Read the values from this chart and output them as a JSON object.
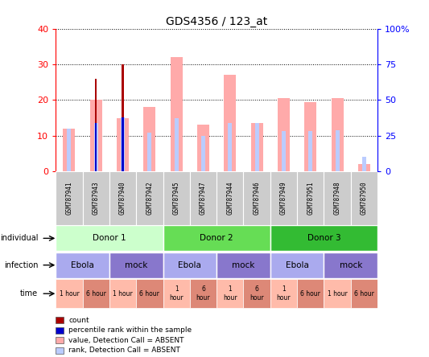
{
  "title": "GDS4356 / 123_at",
  "samples": [
    "GSM787941",
    "GSM787943",
    "GSM787940",
    "GSM787942",
    "GSM787945",
    "GSM787947",
    "GSM787944",
    "GSM787946",
    "GSM787949",
    "GSM787951",
    "GSM787948",
    "GSM787950"
  ],
  "value_absent": [
    12,
    20,
    15,
    18,
    32,
    13,
    27,
    13.5,
    20.5,
    19.5,
    20.5,
    2
  ],
  "rank_absent_pct": [
    30,
    34,
    38,
    27,
    37,
    25,
    34,
    34,
    28,
    28,
    29,
    10
  ],
  "count_vals": [
    0,
    26,
    30,
    0,
    0,
    0,
    0,
    0,
    0,
    0,
    0,
    0
  ],
  "percentile_vals_pct": [
    0,
    34,
    38,
    0,
    0,
    0,
    0,
    0,
    0,
    0,
    0,
    0
  ],
  "ylim_left": [
    0,
    40
  ],
  "ylim_right": [
    0,
    100
  ],
  "yticks_left": [
    0,
    10,
    20,
    30,
    40
  ],
  "yticks_right": [
    0,
    25,
    50,
    75,
    100
  ],
  "ytick_labels_right": [
    "0",
    "25",
    "50",
    "75",
    "100%"
  ],
  "value_absent_color": "#ffaaaa",
  "rank_absent_color": "#bbccff",
  "count_color": "#aa0000",
  "percentile_color": "#0000cc",
  "individual_row": [
    {
      "label": "Donor 1",
      "start": 0,
      "end": 4,
      "color": "#ccffcc"
    },
    {
      "label": "Donor 2",
      "start": 4,
      "end": 8,
      "color": "#66dd55"
    },
    {
      "label": "Donor 3",
      "start": 8,
      "end": 12,
      "color": "#33bb33"
    }
  ],
  "infection_row": [
    {
      "label": "Ebola",
      "start": 0,
      "end": 2,
      "color": "#aaaaee"
    },
    {
      "label": "mock",
      "start": 2,
      "end": 4,
      "color": "#8877cc"
    },
    {
      "label": "Ebola",
      "start": 4,
      "end": 6,
      "color": "#aaaaee"
    },
    {
      "label": "mock",
      "start": 6,
      "end": 8,
      "color": "#8877cc"
    },
    {
      "label": "Ebola",
      "start": 8,
      "end": 10,
      "color": "#aaaaee"
    },
    {
      "label": "mock",
      "start": 10,
      "end": 12,
      "color": "#8877cc"
    }
  ],
  "time_row": [
    {
      "label": "1 hour",
      "start": 0,
      "end": 1,
      "color": "#ffbbaa"
    },
    {
      "label": "6 hour",
      "start": 1,
      "end": 2,
      "color": "#dd8877"
    },
    {
      "label": "1 hour",
      "start": 2,
      "end": 3,
      "color": "#ffbbaa"
    },
    {
      "label": "6 hour",
      "start": 3,
      "end": 4,
      "color": "#dd8877"
    },
    {
      "label": "1\nhour",
      "start": 4,
      "end": 5,
      "color": "#ffbbaa"
    },
    {
      "label": "6\nhour",
      "start": 5,
      "end": 6,
      "color": "#dd8877"
    },
    {
      "label": "1\nhour",
      "start": 6,
      "end": 7,
      "color": "#ffbbaa"
    },
    {
      "label": "6\nhour",
      "start": 7,
      "end": 8,
      "color": "#dd8877"
    },
    {
      "label": "1\nhour",
      "start": 8,
      "end": 9,
      "color": "#ffbbaa"
    },
    {
      "label": "6 hour",
      "start": 9,
      "end": 10,
      "color": "#dd8877"
    },
    {
      "label": "1 hour",
      "start": 10,
      "end": 11,
      "color": "#ffbbaa"
    },
    {
      "label": "6 hour",
      "start": 11,
      "end": 12,
      "color": "#dd8877"
    }
  ],
  "legend": [
    {
      "label": "count",
      "color": "#aa0000"
    },
    {
      "label": "percentile rank within the sample",
      "color": "#0000cc"
    },
    {
      "label": "value, Detection Call = ABSENT",
      "color": "#ffaaaa"
    },
    {
      "label": "rank, Detection Call = ABSENT",
      "color": "#bbccff"
    }
  ],
  "row_labels": [
    "individual",
    "infection",
    "time"
  ],
  "sample_bg": "#cccccc"
}
